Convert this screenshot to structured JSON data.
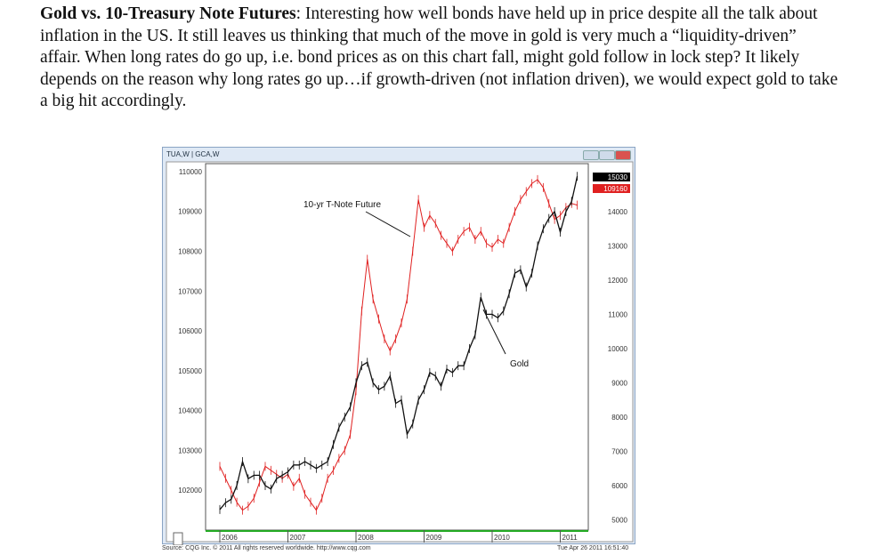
{
  "paragraph": {
    "bold": "Gold vs. 10-Treasury Note Futures",
    "text": ": Interesting how well bonds have held up in price despite all the talk about inflation in the US.  It still leaves us thinking that much of the move in gold is very much a “liquidity-driven” affair.  When long rates do go up, i.e. bond prices as on this chart fall, might gold follow in lock step?  It likely depends on the reason why long rates go up…if growth-driven (not inflation driven), we would expect gold to take a big hit accordingly."
  },
  "window": {
    "title": "TUA,W  |  GCA,W"
  },
  "footer": {
    "source": "Source: CQG Inc. © 2011 All rights reserved worldwide. http://www.cqg.com",
    "timestamp": "Tue Apr 26 2011 16:51:40"
  },
  "chart_data": {
    "type": "line",
    "x_ticks": [
      "2006",
      "2007",
      "2008",
      "2009",
      "2010",
      "2011"
    ],
    "left_axis": {
      "ticks": [
        110000,
        109000,
        108000,
        107000,
        106000,
        105000,
        104000,
        103000,
        102000
      ],
      "range": [
        101000,
        110200
      ]
    },
    "right_axis": {
      "ticks": [
        14000,
        13000,
        12000,
        11000,
        10000,
        9000,
        8000,
        7000,
        6000,
        5000
      ],
      "range": [
        4700,
        15400
      ]
    },
    "last_values": {
      "gold": "15030",
      "tnote": "109160"
    },
    "annotations": [
      "10-yr T-Note Future",
      "Gold"
    ],
    "series": [
      {
        "name": "10-yr T-Note Future",
        "axis": "left",
        "color": "#e02020",
        "start": 2006.0,
        "step_months": 1,
        "values": [
          102600,
          102300,
          102000,
          101700,
          101500,
          101600,
          101800,
          102200,
          102600,
          102500,
          102400,
          102300,
          102400,
          102100,
          102300,
          101900,
          101700,
          101500,
          101800,
          102300,
          102500,
          102800,
          103000,
          103400,
          104500,
          106500,
          107800,
          106800,
          106300,
          105800,
          105500,
          105800,
          106200,
          106800,
          108000,
          109300,
          108600,
          108900,
          108700,
          108400,
          108200,
          108000,
          108300,
          108500,
          108600,
          108300,
          108500,
          108200,
          108100,
          108300,
          108200,
          108600,
          109000,
          109300,
          109500,
          109700,
          109800,
          109600,
          109200,
          108800,
          108900,
          109100,
          109200,
          109160
        ]
      },
      {
        "name": "Gold",
        "axis": "right",
        "color": "#111111",
        "start": 2006.0,
        "step_months": 1,
        "values": [
          5300,
          5500,
          5600,
          6000,
          6700,
          6200,
          6300,
          6300,
          6000,
          5900,
          6200,
          6300,
          6400,
          6600,
          6600,
          6700,
          6600,
          6500,
          6600,
          6700,
          7200,
          7700,
          8000,
          8300,
          9000,
          9500,
          9600,
          9000,
          8800,
          8900,
          9200,
          8400,
          8500,
          7500,
          7800,
          8500,
          8800,
          9300,
          9200,
          8900,
          9400,
          9300,
          9500,
          9500,
          10000,
          10400,
          11500,
          11000,
          11000,
          10900,
          11100,
          11600,
          12200,
          12300,
          11800,
          12200,
          13000,
          13500,
          13800,
          14000,
          13400,
          14000,
          14300,
          15030
        ]
      }
    ]
  }
}
